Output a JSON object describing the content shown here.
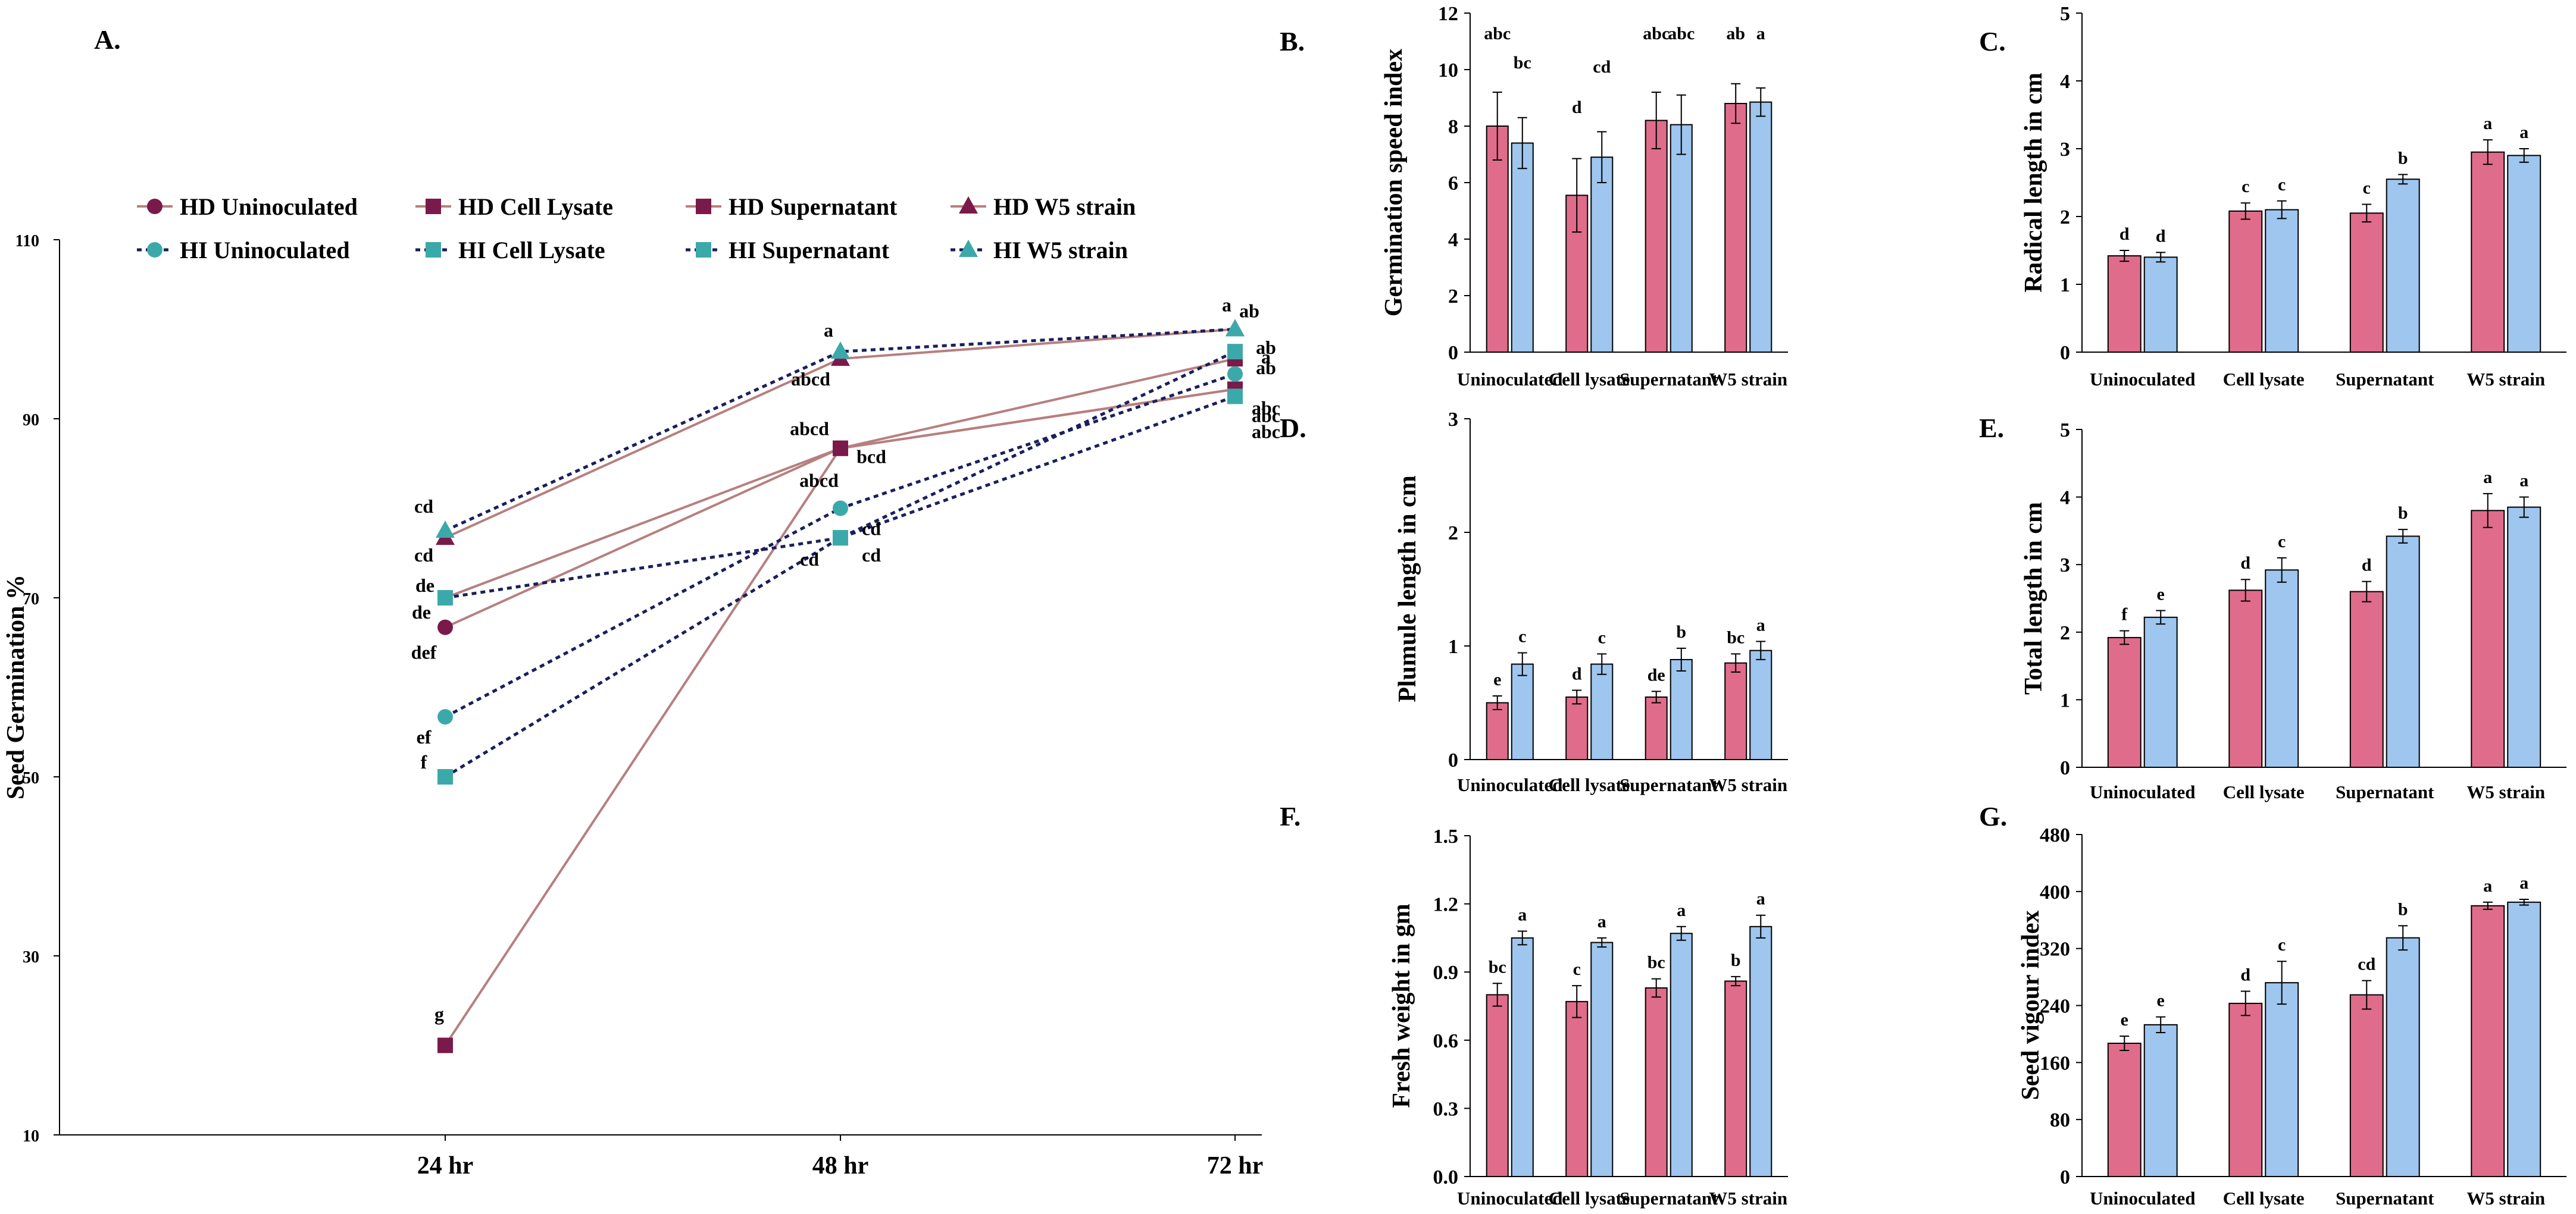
{
  "colors": {
    "hd_line": "#b77f7f",
    "hd_marker": "#7a1a4a",
    "hi_line": "#1a1f5c",
    "hi_marker": "#3ba9a9",
    "bar_hd": "#e06c8b",
    "bar_hi": "#9ec6ee"
  },
  "chart_data": [
    {
      "panel": "A.",
      "type": "line",
      "title": "",
      "xlabel": "",
      "ylabel": "Seed Germination %",
      "x": [
        "24 hr",
        "48 hr",
        "72 hr"
      ],
      "ylim": [
        10,
        110
      ],
      "yticks": [
        10,
        30,
        50,
        70,
        90,
        110
      ],
      "grid": false,
      "series": [
        {
          "name": "HD Uninoculated",
          "group": "HD",
          "marker": "circle",
          "values": [
            66.7,
            86.7,
            93.3
          ],
          "labels": [
            "def",
            "abcd",
            "abc"
          ]
        },
        {
          "name": "HD Cell Lysate",
          "group": "HD",
          "marker": "square",
          "values": [
            20,
            86.7,
            93.3
          ],
          "labels": [
            "g",
            "bcd",
            "abc"
          ]
        },
        {
          "name": "HD Supernatant",
          "group": "HD",
          "marker": "square",
          "values": [
            70,
            86.7,
            96.7
          ],
          "labels": [
            "de",
            "abcd",
            "ab"
          ]
        },
        {
          "name": "HD W5 strain",
          "group": "HD",
          "marker": "triangle",
          "values": [
            76.7,
            96.7,
            100
          ],
          "labels": [
            "cd",
            "abcd",
            "a"
          ]
        },
        {
          "name": "HI Uninoculated",
          "group": "HI",
          "marker": "circle",
          "values": [
            56.7,
            80,
            95
          ],
          "labels": [
            "ef",
            "cd",
            "ab"
          ]
        },
        {
          "name": "HI Cell Lysate",
          "group": "HI",
          "marker": "square",
          "values": [
            50,
            76.7,
            92.5
          ],
          "labels": [
            "f",
            "cd",
            "abc"
          ]
        },
        {
          "name": "HI Supernatant",
          "group": "HI",
          "marker": "square",
          "values": [
            70,
            76.7,
            97.5
          ],
          "labels": [
            "de",
            "cd",
            "a"
          ]
        },
        {
          "name": "HI W5 strain",
          "group": "HI",
          "marker": "triangle",
          "values": [
            77.5,
            97.5,
            100
          ],
          "labels": [
            "cd",
            "a",
            "ab"
          ]
        }
      ]
    },
    {
      "panel": "B.",
      "type": "bar",
      "ylabel": "Germination speed index",
      "categories": [
        "Uninoculated",
        "Cell lysate",
        "Supernatant",
        "W5 strain"
      ],
      "ylim": [
        0,
        12
      ],
      "yticks": [
        0,
        2,
        4,
        6,
        8,
        10,
        12
      ],
      "decimals": 0,
      "grid": false,
      "series": [
        {
          "name": "HD",
          "values": [
            8.0,
            5.55,
            8.2,
            8.8
          ],
          "errors": [
            1.2,
            1.3,
            1.0,
            0.7
          ],
          "labels": [
            "abc",
            "d",
            "abc",
            "ab"
          ]
        },
        {
          "name": "HI",
          "values": [
            7.4,
            6.9,
            8.05,
            8.85
          ],
          "errors": [
            0.9,
            0.9,
            1.05,
            0.5
          ],
          "labels": [
            "bc",
            "cd",
            "abc",
            "a"
          ]
        }
      ]
    },
    {
      "panel": "C.",
      "type": "bar",
      "ylabel": "Radical length in cm",
      "categories": [
        "Uninoculated",
        "Cell lysate",
        "Supernatant",
        "W5 strain"
      ],
      "ylim": [
        0,
        5
      ],
      "yticks": [
        0,
        1,
        2,
        3,
        4,
        5
      ],
      "decimals": 0,
      "grid": false,
      "series": [
        {
          "name": "HD",
          "values": [
            1.42,
            2.08,
            2.05,
            2.95
          ],
          "errors": [
            0.08,
            0.12,
            0.13,
            0.18
          ],
          "labels": [
            "d",
            "c",
            "c",
            "a"
          ]
        },
        {
          "name": "HI",
          "values": [
            1.4,
            2.1,
            2.55,
            2.9
          ],
          "errors": [
            0.07,
            0.13,
            0.07,
            0.1
          ],
          "labels": [
            "d",
            "c",
            "b",
            "a"
          ]
        }
      ]
    },
    {
      "panel": "D.",
      "type": "bar",
      "ylabel": "Plumule length in cm",
      "categories": [
        "Uninoculated",
        "Cell lysate",
        "Supernatant",
        "W5 strain"
      ],
      "ylim": [
        0,
        3
      ],
      "yticks": [
        0,
        1,
        2,
        3
      ],
      "decimals": 0,
      "grid": false,
      "series": [
        {
          "name": "HD",
          "values": [
            0.5,
            0.55,
            0.55,
            0.85
          ],
          "errors": [
            0.06,
            0.06,
            0.05,
            0.08
          ],
          "labels": [
            "e",
            "d",
            "de",
            "bc"
          ]
        },
        {
          "name": "HI",
          "values": [
            0.84,
            0.84,
            0.88,
            0.96
          ],
          "errors": [
            0.1,
            0.09,
            0.1,
            0.08
          ],
          "labels": [
            "c",
            "c",
            "b",
            "a"
          ]
        }
      ]
    },
    {
      "panel": "E.",
      "type": "bar",
      "ylabel": "Total length in cm",
      "categories": [
        "Uninoculated",
        "Cell lysate",
        "Supernatant",
        "W5 strain"
      ],
      "ylim": [
        0,
        5
      ],
      "yticks": [
        0,
        1,
        2,
        3,
        4,
        5
      ],
      "decimals": 0,
      "grid": false,
      "series": [
        {
          "name": "HD",
          "values": [
            1.92,
            2.62,
            2.6,
            3.8
          ],
          "errors": [
            0.1,
            0.16,
            0.15,
            0.25
          ],
          "labels": [
            "f",
            "d",
            "d",
            "a"
          ]
        },
        {
          "name": "HI",
          "values": [
            2.22,
            2.92,
            3.42,
            3.85
          ],
          "errors": [
            0.1,
            0.18,
            0.1,
            0.15
          ],
          "labels": [
            "e",
            "c",
            "b",
            "a"
          ]
        }
      ]
    },
    {
      "panel": "F.",
      "type": "bar",
      "ylabel": "Fresh weight in gm",
      "categories": [
        "Uninoculated",
        "Cell lysate",
        "Supernatant",
        "W5 strain"
      ],
      "ylim": [
        0,
        1.5
      ],
      "yticks": [
        0,
        0.3,
        0.6,
        0.9,
        1.2,
        1.5
      ],
      "decimals": 1,
      "grid": false,
      "series": [
        {
          "name": "HD",
          "values": [
            0.8,
            0.77,
            0.83,
            0.86
          ],
          "errors": [
            0.05,
            0.07,
            0.04,
            0.02
          ],
          "labels": [
            "bc",
            "c",
            "bc",
            "b"
          ]
        },
        {
          "name": "HI",
          "values": [
            1.05,
            1.03,
            1.07,
            1.1
          ],
          "errors": [
            0.03,
            0.02,
            0.03,
            0.05
          ],
          "labels": [
            "a",
            "a",
            "a",
            "a"
          ]
        }
      ]
    },
    {
      "panel": "G.",
      "type": "bar",
      "ylabel": "Seed vigour index",
      "categories": [
        "Uninoculated",
        "Cell lysate",
        "Supernatant",
        "W5 strain"
      ],
      "ylim": [
        0,
        480
      ],
      "yticks": [
        0,
        80,
        160,
        240,
        320,
        400,
        480
      ],
      "decimals": 0,
      "grid": false,
      "series": [
        {
          "name": "HD",
          "values": [
            187,
            243,
            255,
            380
          ],
          "errors": [
            10,
            17,
            20,
            5
          ],
          "labels": [
            "e",
            "d",
            "cd",
            "a"
          ]
        },
        {
          "name": "HI",
          "values": [
            213,
            272,
            335,
            385
          ],
          "errors": [
            11,
            30,
            17,
            4
          ],
          "labels": [
            "e",
            "c",
            "b",
            "a"
          ]
        }
      ]
    }
  ]
}
